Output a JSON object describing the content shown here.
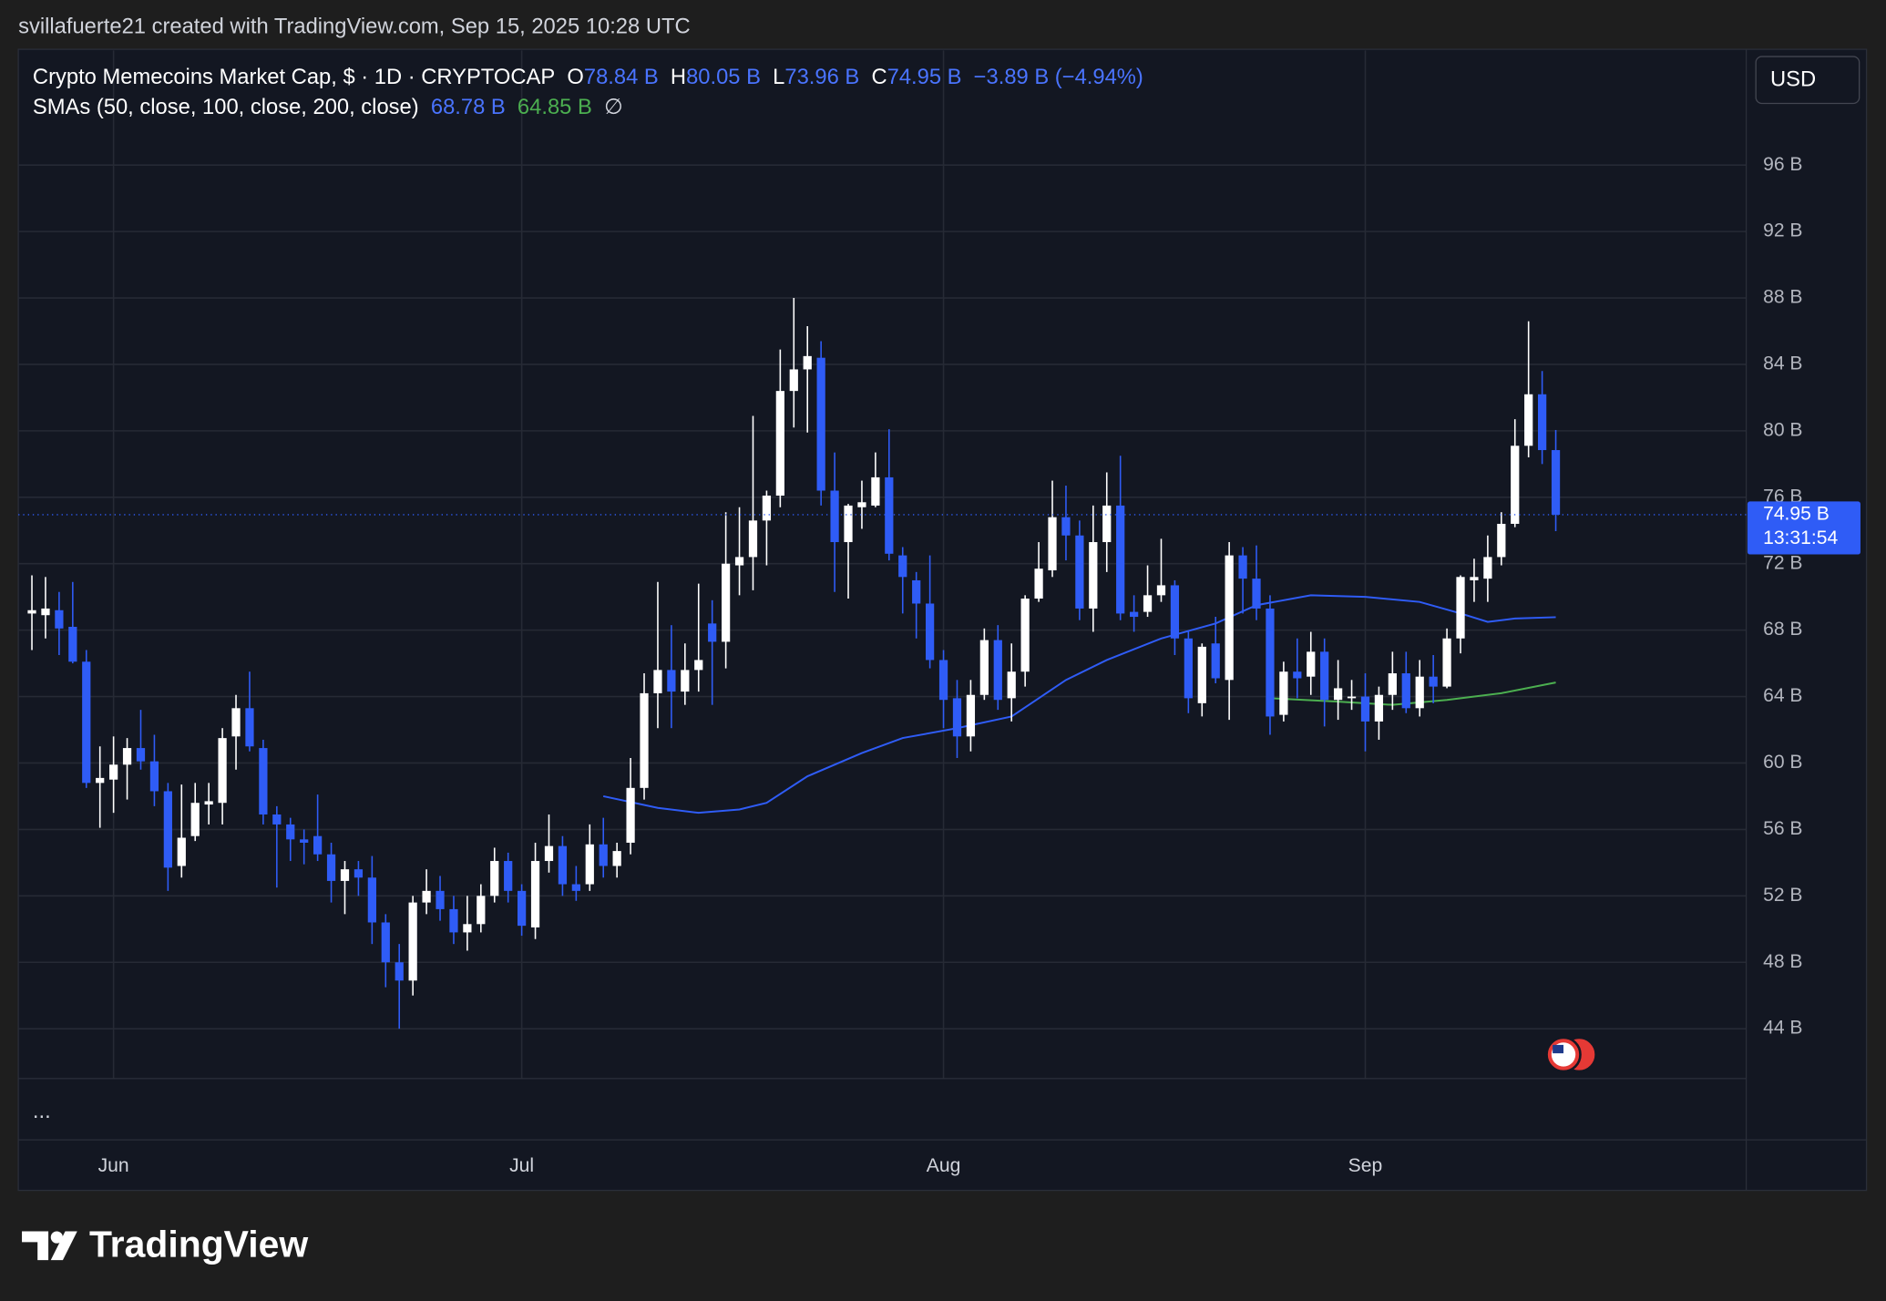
{
  "header": {
    "credit": "svillafuerte21 created with TradingView.com, Sep 15, 2025 10:28 UTC"
  },
  "legend": {
    "symbol": "Crypto Memecoins Market Cap, $ · 1D · CRYPTOCAP",
    "open_label": "O",
    "open": "78.84 B",
    "high_label": "H",
    "high": "80.05 B",
    "low_label": "L",
    "low": "73.96 B",
    "close_label": "C",
    "close": "74.95 B",
    "change": "−3.89 B (−4.94%)",
    "indicator": "SMAs (50, close, 100, close, 200, close)",
    "sma50": "68.78 B",
    "sma100": "64.85 B",
    "sma200": "∅"
  },
  "currency_button": "USD",
  "price_badge": {
    "price": "74.95 B",
    "countdown": "13:31:54"
  },
  "pane_menu": "...",
  "brand": "TradingView",
  "chart_data": {
    "type": "candlestick",
    "x": [
      "2025-05-26",
      "2025-05-27",
      "2025-05-28",
      "2025-05-29",
      "2025-05-30",
      "2025-05-31",
      "2025-06-01",
      "2025-06-02",
      "2025-06-03",
      "2025-06-04",
      "2025-06-05",
      "2025-06-06",
      "2025-06-07",
      "2025-06-08",
      "2025-06-09",
      "2025-06-10",
      "2025-06-11",
      "2025-06-12",
      "2025-06-13",
      "2025-06-14",
      "2025-06-15",
      "2025-06-16",
      "2025-06-17",
      "2025-06-18",
      "2025-06-19",
      "2025-06-20",
      "2025-06-21",
      "2025-06-22",
      "2025-06-23",
      "2025-06-24",
      "2025-06-25",
      "2025-06-26",
      "2025-06-27",
      "2025-06-28",
      "2025-06-29",
      "2025-06-30",
      "2025-07-01",
      "2025-07-02",
      "2025-07-03",
      "2025-07-04",
      "2025-07-05",
      "2025-07-06",
      "2025-07-07",
      "2025-07-08",
      "2025-07-09",
      "2025-07-10",
      "2025-07-11",
      "2025-07-12",
      "2025-07-13",
      "2025-07-14",
      "2025-07-15",
      "2025-07-16",
      "2025-07-17",
      "2025-07-18",
      "2025-07-19",
      "2025-07-20",
      "2025-07-21",
      "2025-07-22",
      "2025-07-23",
      "2025-07-24",
      "2025-07-25",
      "2025-07-26",
      "2025-07-27",
      "2025-07-28",
      "2025-07-29",
      "2025-07-30",
      "2025-07-31",
      "2025-08-01",
      "2025-08-02",
      "2025-08-03",
      "2025-08-04",
      "2025-08-05",
      "2025-08-06",
      "2025-08-07",
      "2025-08-08",
      "2025-08-09",
      "2025-08-10",
      "2025-08-11",
      "2025-08-12",
      "2025-08-13",
      "2025-08-14",
      "2025-08-15",
      "2025-08-16",
      "2025-08-17",
      "2025-08-18",
      "2025-08-19",
      "2025-08-20",
      "2025-08-21",
      "2025-08-22",
      "2025-08-23",
      "2025-08-24",
      "2025-08-25",
      "2025-08-26",
      "2025-08-27",
      "2025-08-28",
      "2025-08-29",
      "2025-08-30",
      "2025-08-31",
      "2025-09-01",
      "2025-09-02",
      "2025-09-03",
      "2025-09-04",
      "2025-09-05",
      "2025-09-06",
      "2025-09-07",
      "2025-09-08",
      "2025-09-09",
      "2025-09-10",
      "2025-09-11",
      "2025-09-12",
      "2025-09-13",
      "2025-09-14",
      "2025-09-15"
    ],
    "open": [
      69.0,
      68.9,
      69.2,
      68.2,
      66.1,
      58.8,
      59.0,
      59.9,
      60.9,
      60.1,
      58.3,
      53.8,
      55.6,
      57.5,
      57.6,
      61.6,
      63.3,
      60.9,
      56.9,
      56.3,
      55.4,
      55.6,
      54.5,
      52.9,
      53.6,
      53.1,
      50.4,
      48.0,
      46.9,
      51.6,
      52.3,
      51.2,
      49.8,
      50.3,
      52.0,
      54.1,
      52.3,
      50.1,
      54.1,
      55.0,
      52.7,
      52.7,
      55.1,
      53.8,
      55.2,
      58.5,
      64.2,
      65.6,
      64.3,
      65.6,
      68.4,
      67.3,
      71.9,
      72.4,
      74.6,
      76.1,
      82.4,
      83.7,
      84.4,
      76.4,
      73.3,
      75.4,
      75.5,
      77.2,
      72.5,
      71.0,
      69.6,
      66.2,
      63.9,
      61.6,
      64.1,
      67.4,
      63.9,
      65.5,
      69.9,
      71.6,
      74.8,
      73.7,
      69.3,
      73.3,
      75.5,
      69.1,
      69.1,
      70.1,
      70.7,
      67.5,
      63.6,
      67.2,
      65.0,
      72.5,
      71.1,
      69.3,
      62.9,
      65.5,
      65.2,
      66.7,
      63.8,
      63.9,
      64.0,
      62.5,
      64.1,
      65.4,
      63.3,
      65.2,
      64.6,
      67.5,
      71.0,
      71.1,
      72.4,
      74.4,
      79.1,
      82.2,
      78.84
    ],
    "high": [
      71.3,
      71.2,
      70.3,
      70.9,
      66.8,
      61.0,
      61.6,
      61.5,
      63.2,
      61.7,
      58.8,
      58.7,
      58.8,
      58.8,
      62.1,
      64.1,
      65.5,
      61.4,
      57.4,
      56.7,
      56.0,
      58.1,
      55.2,
      54.1,
      54.1,
      54.4,
      50.9,
      49.1,
      52.0,
      53.6,
      53.2,
      52.0,
      52.0,
      52.7,
      54.9,
      54.6,
      52.7,
      55.2,
      56.9,
      55.6,
      53.8,
      56.3,
      56.7,
      55.2,
      60.3,
      65.4,
      70.9,
      68.3,
      67.2,
      70.8,
      69.8,
      75.1,
      75.4,
      80.9,
      76.4,
      84.9,
      88.0,
      86.3,
      85.4,
      78.7,
      75.6,
      77.0,
      78.7,
      80.1,
      73.0,
      71.5,
      72.5,
      66.8,
      65.0,
      65.0,
      68.1,
      68.3,
      67.2,
      70.1,
      73.3,
      77.0,
      76.7,
      74.6,
      75.5,
      77.5,
      78.5,
      70.1,
      71.9,
      73.5,
      71.0,
      67.9,
      67.2,
      68.8,
      73.3,
      73.0,
      73.1,
      70.1,
      66.1,
      67.5,
      67.9,
      67.5,
      66.2,
      65.0,
      65.4,
      64.6,
      66.7,
      66.7,
      66.2,
      66.5,
      68.1,
      71.3,
      72.3,
      73.7,
      75.1,
      80.7,
      86.6,
      83.6,
      80.05
    ],
    "low": [
      66.8,
      67.5,
      66.5,
      66.0,
      58.5,
      56.1,
      57.0,
      57.8,
      59.6,
      57.4,
      52.3,
      53.1,
      55.3,
      56.3,
      56.3,
      59.6,
      60.7,
      56.3,
      52.5,
      54.1,
      53.9,
      54.1,
      51.6,
      50.9,
      52.0,
      49.1,
      46.5,
      44.0,
      46.0,
      50.9,
      50.5,
      49.1,
      48.7,
      49.8,
      51.6,
      51.6,
      49.6,
      49.4,
      53.4,
      52.0,
      51.7,
      52.3,
      53.1,
      53.1,
      54.5,
      57.8,
      62.1,
      62.1,
      63.5,
      64.3,
      63.5,
      65.7,
      70.1,
      70.4,
      71.9,
      75.4,
      80.2,
      79.9,
      75.5,
      70.3,
      69.9,
      74.1,
      75.4,
      72.2,
      69.0,
      67.5,
      65.7,
      62.1,
      60.3,
      60.7,
      63.8,
      63.2,
      62.5,
      64.6,
      69.7,
      71.2,
      72.2,
      68.6,
      67.9,
      71.5,
      68.6,
      67.9,
      68.8,
      69.7,
      66.5,
      63.0,
      62.8,
      64.8,
      62.6,
      69.0,
      68.6,
      61.7,
      62.5,
      63.9,
      64.1,
      62.2,
      62.6,
      63.2,
      60.7,
      61.4,
      63.2,
      63.0,
      62.8,
      63.6,
      64.5,
      66.6,
      69.7,
      69.7,
      71.9,
      74.2,
      78.4,
      78.0,
      73.96
    ],
    "close": [
      69.2,
      69.3,
      68.1,
      66.1,
      58.8,
      59.1,
      59.9,
      60.9,
      60.1,
      58.3,
      53.7,
      55.5,
      57.6,
      57.7,
      61.5,
      63.3,
      61.0,
      56.9,
      56.3,
      55.4,
      55.2,
      54.5,
      52.9,
      53.6,
      53.1,
      50.4,
      48.0,
      46.9,
      51.6,
      52.3,
      51.2,
      49.8,
      50.3,
      52.0,
      54.1,
      52.3,
      50.2,
      54.1,
      55.0,
      52.7,
      52.3,
      55.1,
      53.8,
      54.7,
      58.5,
      64.2,
      65.6,
      64.3,
      65.6,
      66.2,
      67.3,
      72.0,
      72.4,
      74.6,
      76.1,
      82.4,
      83.7,
      84.5,
      76.4,
      73.3,
      75.5,
      75.7,
      77.2,
      72.6,
      71.2,
      69.6,
      66.2,
      63.8,
      61.6,
      64.1,
      67.4,
      63.8,
      65.5,
      69.9,
      71.7,
      74.8,
      73.7,
      69.3,
      73.3,
      75.5,
      69.0,
      68.8,
      70.1,
      70.7,
      67.5,
      63.9,
      67.0,
      65.1,
      72.5,
      71.1,
      69.3,
      62.8,
      65.5,
      65.1,
      66.7,
      63.8,
      64.5,
      64.0,
      62.5,
      64.1,
      65.4,
      63.3,
      65.2,
      64.6,
      67.5,
      71.2,
      71.2,
      72.4,
      74.4,
      79.1,
      82.2,
      78.84,
      74.95
    ],
    "up_color": "#ffffff",
    "down_color": "#2f5cf6",
    "overlays": [
      {
        "color": "#2f5cf6",
        "x": [
          "2025-07-07",
          "2025-07-11",
          "2025-07-14",
          "2025-07-17",
          "2025-07-19",
          "2025-07-22",
          "2025-07-26",
          "2025-07-29",
          "2025-08-02",
          "2025-08-06",
          "2025-08-10",
          "2025-08-13",
          "2025-08-17",
          "2025-08-21",
          "2025-08-24",
          "2025-08-28",
          "2025-09-01",
          "2025-09-05",
          "2025-09-08",
          "2025-09-10",
          "2025-09-12",
          "2025-09-15"
        ],
        "values": [
          58.0,
          57.3,
          57.0,
          57.2,
          57.6,
          59.2,
          60.6,
          61.5,
          62.1,
          62.8,
          65.0,
          66.2,
          67.5,
          68.4,
          69.5,
          70.1,
          70.0,
          69.7,
          69.0,
          68.5,
          68.7,
          68.78
        ]
      },
      {
        "color": "#4caf50",
        "x": [
          "2025-08-25",
          "2025-08-30",
          "2025-09-03",
          "2025-09-07",
          "2025-09-11",
          "2025-09-15"
        ],
        "values": [
          63.9,
          63.7,
          63.5,
          63.8,
          64.2,
          64.85
        ]
      }
    ],
    "xlim": [
      "2025-05-25",
      "2025-09-29"
    ],
    "xticks": [
      {
        "value": "2025-06-01",
        "label": "Jun"
      },
      {
        "value": "2025-07-01",
        "label": "Jul"
      },
      {
        "value": "2025-08-01",
        "label": "Aug"
      },
      {
        "value": "2025-09-01",
        "label": "Sep"
      }
    ],
    "ylim": [
      41,
      102.9
    ],
    "yticks": [
      {
        "value": 44,
        "label": "44 B"
      },
      {
        "value": 48,
        "label": "48 B"
      },
      {
        "value": 52,
        "label": "52 B"
      },
      {
        "value": 56,
        "label": "56 B"
      },
      {
        "value": 60,
        "label": "60 B"
      },
      {
        "value": 64,
        "label": "64 B"
      },
      {
        "value": 68,
        "label": "68 B"
      },
      {
        "value": 72,
        "label": "72 B"
      },
      {
        "value": 76,
        "label": "76 B"
      },
      {
        "value": 80,
        "label": "80 B"
      },
      {
        "value": 84,
        "label": "84 B"
      },
      {
        "value": 88,
        "label": "88 B"
      },
      {
        "value": 92,
        "label": "92 B"
      },
      {
        "value": 96,
        "label": "96 B"
      }
    ],
    "grid": true,
    "last_price_line": true
  }
}
